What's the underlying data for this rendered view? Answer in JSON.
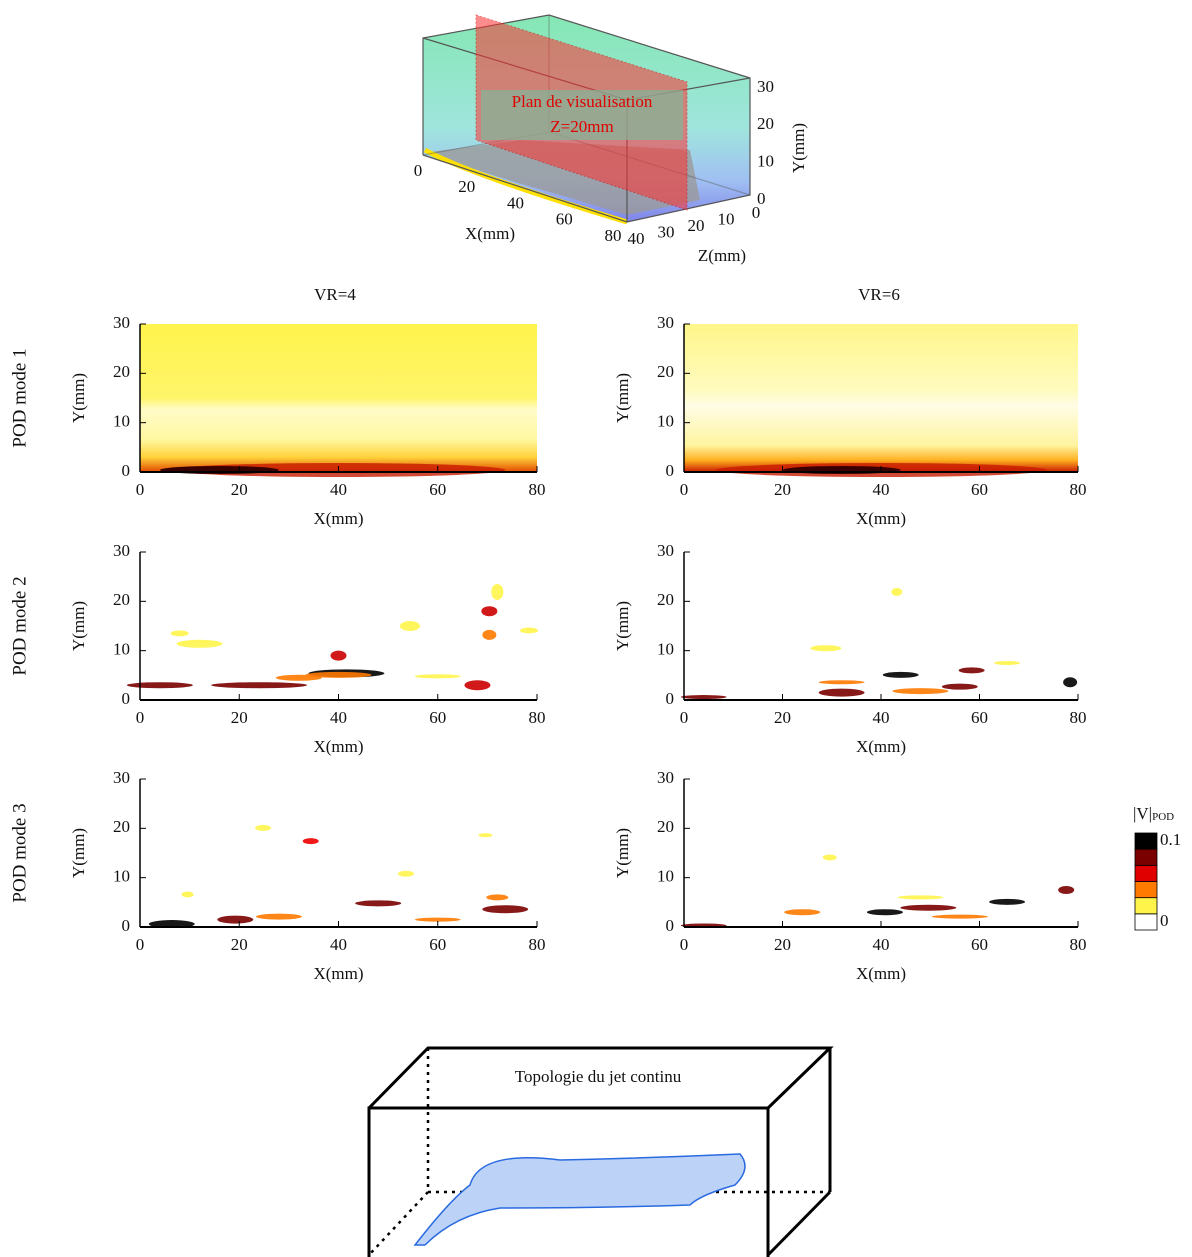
{
  "top3d": {
    "plane_label": "Plan de visualisation",
    "plane_z": "Z=20mm",
    "x_label": "X(mm)",
    "y_label": "Y(mm)",
    "z_label": "Z(mm)",
    "xticks": [
      0,
      20,
      40,
      60,
      80
    ],
    "yticks": [
      0,
      10,
      20,
      30
    ],
    "zticks": [
      40,
      30,
      20,
      10,
      0
    ]
  },
  "columns": [
    "VR=4",
    "VR=6"
  ],
  "rows": [
    "POD mode 1",
    "POD mode 2",
    "POD mode 3"
  ],
  "axes": {
    "xlabel": "X(mm)",
    "ylabel": "Y(mm)",
    "xlim": [
      0,
      80
    ],
    "ylim": [
      0,
      30
    ],
    "xticks": [
      0,
      20,
      40,
      60,
      80
    ],
    "yticks": [
      0,
      10,
      20,
      30
    ]
  },
  "colorbar": {
    "title": "|V|",
    "title_sub": "POD",
    "range": [
      0,
      0.1
    ],
    "ticks": [
      0.1,
      0
    ],
    "levels": [
      "#ffffff",
      "#fff44a",
      "#ff7a00",
      "#e00000",
      "#7a0000",
      "#000000"
    ]
  },
  "bottom": {
    "title": "Topologie du jet continu"
  }
}
